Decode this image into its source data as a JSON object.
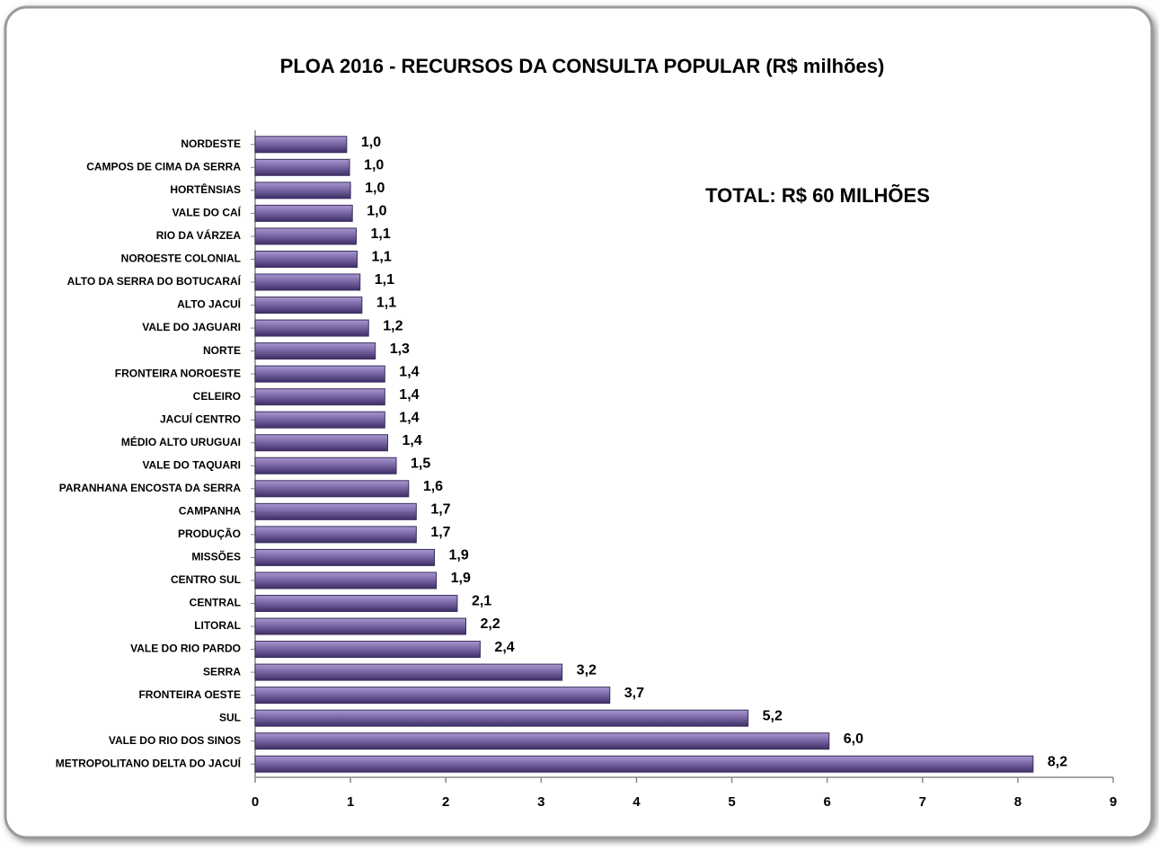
{
  "chart_data": {
    "type": "bar",
    "orientation": "horizontal",
    "title": "PLOA 2016 - RECURSOS DA CONSULTA POPULAR  (R$ milhões)",
    "annotation": "TOTAL: R$  60 MILHÕES",
    "categories": [
      "NORDESTE",
      "CAMPOS DE CIMA DA SERRA",
      "HORTÊNSIAS",
      "VALE DO CAÍ",
      "RIO DA VÁRZEA",
      "NOROESTE COLONIAL",
      "ALTO DA SERRA DO BOTUCARAÍ",
      "ALTO JACUÍ",
      "VALE DO JAGUARI",
      "NORTE",
      "FRONTEIRA NOROESTE",
      "CELEIRO",
      "JACUÍ CENTRO",
      "MÉDIO ALTO URUGUAI",
      "VALE DO TAQUARI",
      "PARANHANA ENCOSTA DA SERRA",
      "CAMPANHA",
      "PRODUÇÃO",
      "MISSÕES",
      "CENTRO SUL",
      "CENTRAL",
      "LITORAL",
      "VALE DO RIO PARDO",
      "SERRA",
      "FRONTEIRA OESTE",
      "SUL",
      "VALE DO RIO DOS SINOS",
      "METROPOLITANO DELTA DO JACUÍ"
    ],
    "values": [
      0.96,
      0.99,
      1.0,
      1.02,
      1.06,
      1.07,
      1.1,
      1.12,
      1.19,
      1.26,
      1.36,
      1.36,
      1.36,
      1.39,
      1.48,
      1.61,
      1.69,
      1.69,
      1.88,
      1.9,
      2.12,
      2.21,
      2.36,
      3.22,
      3.72,
      5.17,
      6.02,
      8.16
    ],
    "value_labels": [
      "1,0",
      "1,0",
      "1,0",
      "1,0",
      "1,1",
      "1,1",
      "1,1",
      "1,1",
      "1,2",
      "1,3",
      "1,4",
      "1,4",
      "1,4",
      "1,4",
      "1,5",
      "1,6",
      "1,7",
      "1,7",
      "1,9",
      "1,9",
      "2,1",
      "2,2",
      "2,4",
      "3,2",
      "3,7",
      "5,2",
      "6,0",
      "8,2"
    ],
    "color": "#7b68a6",
    "xlim": [
      0,
      9
    ],
    "xticks": [
      0,
      1,
      2,
      3,
      4,
      5,
      6,
      7,
      8,
      9
    ],
    "grid": false
  }
}
